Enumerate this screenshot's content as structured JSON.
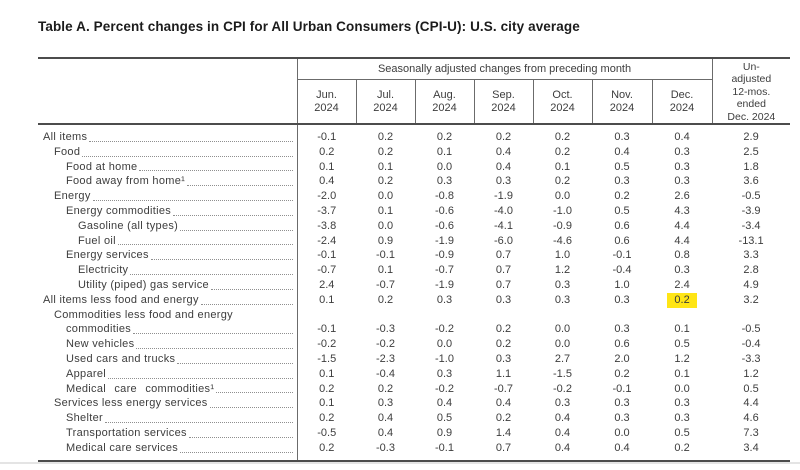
{
  "page_title": "Table A. Percent changes in CPI for All Urban Consumers (CPI-U): U.S. city average",
  "table": {
    "group_header": "Seasonally adjusted changes from preceding month",
    "unadjusted_header": "Un-\nadjusted\n12-mos.\nended\nDec. 2024",
    "months": [
      "Jun.\n2024",
      "Jul.\n2024",
      "Aug.\n2024",
      "Sep.\n2024",
      "Oct.\n2024",
      "Nov.\n2024",
      "Dec.\n2024"
    ],
    "highlight_color": "#ffe515",
    "rows": [
      {
        "label": "All items",
        "indent": 0,
        "values": [
          "-0.1",
          "0.2",
          "0.2",
          "0.2",
          "0.2",
          "0.3",
          "0.4"
        ],
        "annual": "2.9"
      },
      {
        "label": "Food",
        "indent": 1,
        "values": [
          "0.2",
          "0.2",
          "0.1",
          "0.4",
          "0.2",
          "0.4",
          "0.3"
        ],
        "annual": "2.5"
      },
      {
        "label": "Food at home",
        "indent": 2,
        "values": [
          "0.1",
          "0.1",
          "0.0",
          "0.4",
          "0.1",
          "0.5",
          "0.3"
        ],
        "annual": "1.8"
      },
      {
        "label": "Food away from home¹",
        "indent": 2,
        "values": [
          "0.4",
          "0.2",
          "0.3",
          "0.3",
          "0.2",
          "0.3",
          "0.3"
        ],
        "annual": "3.6"
      },
      {
        "label": "Energy",
        "indent": 1,
        "values": [
          "-2.0",
          "0.0",
          "-0.8",
          "-1.9",
          "0.0",
          "0.2",
          "2.6"
        ],
        "annual": "-0.5"
      },
      {
        "label": "Energy commodities",
        "indent": 2,
        "values": [
          "-3.7",
          "0.1",
          "-0.6",
          "-4.0",
          "-1.0",
          "0.5",
          "4.3"
        ],
        "annual": "-3.9"
      },
      {
        "label": "Gasoline (all types)",
        "indent": 3,
        "values": [
          "-3.8",
          "0.0",
          "-0.6",
          "-4.1",
          "-0.9",
          "0.6",
          "4.4"
        ],
        "annual": "-3.4"
      },
      {
        "label": "Fuel oil",
        "indent": 3,
        "values": [
          "-2.4",
          "0.9",
          "-1.9",
          "-6.0",
          "-4.6",
          "0.6",
          "4.4"
        ],
        "annual": "-13.1"
      },
      {
        "label": "Energy services",
        "indent": 2,
        "values": [
          "-0.1",
          "-0.1",
          "-0.9",
          "0.7",
          "1.0",
          "-0.1",
          "0.8"
        ],
        "annual": "3.3"
      },
      {
        "label": "Electricity",
        "indent": 3,
        "values": [
          "-0.7",
          "0.1",
          "-0.7",
          "0.7",
          "1.2",
          "-0.4",
          "0.3"
        ],
        "annual": "2.8"
      },
      {
        "label": "Utility (piped) gas service",
        "indent": 3,
        "values": [
          "2.4",
          "-0.7",
          "-1.9",
          "0.7",
          "0.3",
          "1.0",
          "2.4"
        ],
        "annual": "4.9"
      },
      {
        "label": "All items less food and energy",
        "indent": 0,
        "values": [
          "0.1",
          "0.2",
          "0.3",
          "0.3",
          "0.3",
          "0.3",
          "0.2"
        ],
        "annual": "3.2",
        "highlight": 6
      },
      {
        "label": "Commodities less food and energy",
        "indent": 1,
        "label2": "commodities",
        "indent2": 2,
        "values": [
          "-0.1",
          "-0.3",
          "-0.2",
          "0.2",
          "0.0",
          "0.3",
          "0.1"
        ],
        "annual": "-0.5"
      },
      {
        "label": "New vehicles",
        "indent": 2,
        "values": [
          "-0.2",
          "-0.2",
          "0.0",
          "0.2",
          "0.0",
          "0.6",
          "0.5"
        ],
        "annual": "-0.4"
      },
      {
        "label": "Used cars and trucks",
        "indent": 2,
        "values": [
          "-1.5",
          "-2.3",
          "-1.0",
          "0.3",
          "2.7",
          "2.0",
          "1.2"
        ],
        "annual": "-3.3"
      },
      {
        "label": "Apparel",
        "indent": 2,
        "values": [
          "0.1",
          "-0.4",
          "0.3",
          "1.1",
          "-1.5",
          "0.2",
          "0.1"
        ],
        "annual": "1.2"
      },
      {
        "label": "Medical care commodities¹",
        "indent": 2,
        "wide": true,
        "values": [
          "0.2",
          "0.2",
          "-0.2",
          "-0.7",
          "-0.2",
          "-0.1",
          "0.0"
        ],
        "annual": "0.5"
      },
      {
        "label": "Services less energy services",
        "indent": 1,
        "values": [
          "0.1",
          "0.3",
          "0.4",
          "0.4",
          "0.3",
          "0.3",
          "0.3"
        ],
        "annual": "4.4"
      },
      {
        "label": "Shelter",
        "indent": 2,
        "values": [
          "0.2",
          "0.4",
          "0.5",
          "0.2",
          "0.4",
          "0.3",
          "0.3"
        ],
        "annual": "4.6"
      },
      {
        "label": "Transportation services",
        "indent": 2,
        "values": [
          "-0.5",
          "0.4",
          "0.9",
          "1.4",
          "0.4",
          "0.0",
          "0.5"
        ],
        "annual": "7.3"
      },
      {
        "label": "Medical care services",
        "indent": 2,
        "values": [
          "0.2",
          "-0.3",
          "-0.1",
          "0.7",
          "0.4",
          "0.4",
          "0.2"
        ],
        "annual": "3.4"
      }
    ]
  }
}
